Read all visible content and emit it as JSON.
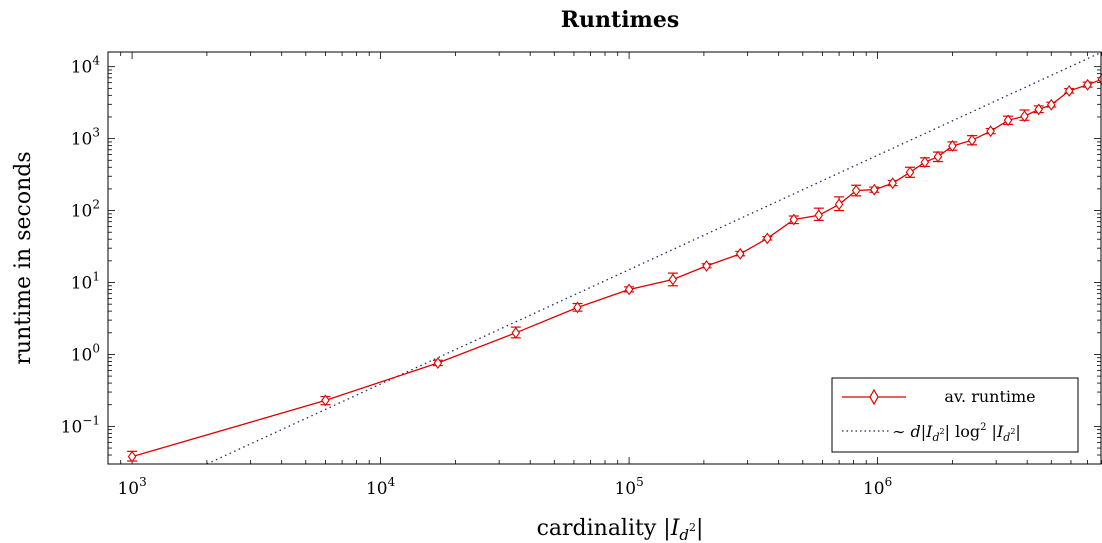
{
  "chart_data": {
    "type": "line",
    "title": "Runtimes",
    "xlabel": "cardinality |I_{d²}|",
    "ylabel": "runtime in seconds",
    "x_scale": "log",
    "y_scale": "log",
    "xlim": [
      800,
      8000000
    ],
    "ylim": [
      0.03,
      16000
    ],
    "x_ticks": [
      {
        "value": 1000,
        "base": "10",
        "exp": "3"
      },
      {
        "value": 10000,
        "base": "10",
        "exp": "4"
      },
      {
        "value": 100000,
        "base": "10",
        "exp": "5"
      },
      {
        "value": 1000000,
        "base": "10",
        "exp": "6"
      }
    ],
    "y_ticks": [
      {
        "value": 0.1,
        "base": "10",
        "exp": "−1"
      },
      {
        "value": 1,
        "base": "10",
        "exp": "0"
      },
      {
        "value": 10,
        "base": "10",
        "exp": "1"
      },
      {
        "value": 100,
        "base": "10",
        "exp": "2"
      },
      {
        "value": 1000,
        "base": "10",
        "exp": "3"
      },
      {
        "value": 10000,
        "base": "10",
        "exp": "4"
      }
    ],
    "legend_position": "bottom-right",
    "series": [
      {
        "name": "av. runtime",
        "color": "#e00000",
        "marker": "diamond",
        "points": [
          {
            "x": 1000,
            "y": 0.038,
            "ylo": 0.033,
            "yhi": 0.045
          },
          {
            "x": 6000,
            "y": 0.23,
            "ylo": 0.2,
            "yhi": 0.26
          },
          {
            "x": 17000,
            "y": 0.76,
            "ylo": 0.7,
            "yhi": 0.83
          },
          {
            "x": 35000,
            "y": 2.0,
            "ylo": 1.7,
            "yhi": 2.4
          },
          {
            "x": 62000,
            "y": 4.5,
            "ylo": 4.0,
            "yhi": 5.1
          },
          {
            "x": 100000,
            "y": 8.0,
            "ylo": 7.4,
            "yhi": 8.7
          },
          {
            "x": 150000,
            "y": 11.0,
            "ylo": 9.0,
            "yhi": 13.5
          },
          {
            "x": 205000,
            "y": 17.0,
            "ylo": 16.0,
            "yhi": 18.2
          },
          {
            "x": 280000,
            "y": 25.0,
            "ylo": 23.5,
            "yhi": 27.0
          },
          {
            "x": 360000,
            "y": 41.0,
            "ylo": 39.0,
            "yhi": 43.5
          },
          {
            "x": 460000,
            "y": 75.0,
            "ylo": 66.0,
            "yhi": 84.0
          },
          {
            "x": 580000,
            "y": 86.0,
            "ylo": 73.0,
            "yhi": 108.0
          },
          {
            "x": 700000,
            "y": 122.0,
            "ylo": 100.0,
            "yhi": 155.0
          },
          {
            "x": 820000,
            "y": 190.0,
            "ylo": 160.0,
            "yhi": 225.0
          },
          {
            "x": 970000,
            "y": 195.0,
            "ylo": 180.0,
            "yhi": 212.0
          },
          {
            "x": 1150000,
            "y": 240.0,
            "ylo": 222.0,
            "yhi": 262.0
          },
          {
            "x": 1350000,
            "y": 340.0,
            "ylo": 290.0,
            "yhi": 400.0
          },
          {
            "x": 1550000,
            "y": 470.0,
            "ylo": 410.0,
            "yhi": 540.0
          },
          {
            "x": 1750000,
            "y": 560.0,
            "ylo": 480.0,
            "yhi": 650.0
          },
          {
            "x": 2000000,
            "y": 790.0,
            "ylo": 690.0,
            "yhi": 900.0
          },
          {
            "x": 2400000,
            "y": 950.0,
            "ylo": 820.0,
            "yhi": 1100.0
          },
          {
            "x": 2850000,
            "y": 1270.0,
            "ylo": 1170.0,
            "yhi": 1380.0
          },
          {
            "x": 3350000,
            "y": 1800.0,
            "ylo": 1580.0,
            "yhi": 2050.0
          },
          {
            "x": 3900000,
            "y": 2050.0,
            "ylo": 1800.0,
            "yhi": 2500.0
          },
          {
            "x": 4450000,
            "y": 2550.0,
            "ylo": 2300.0,
            "yhi": 2850.0
          },
          {
            "x": 5000000,
            "y": 2950.0,
            "ylo": 2750.0,
            "yhi": 3200.0
          },
          {
            "x": 5900000,
            "y": 4600.0,
            "ylo": 4300.0,
            "yhi": 4950.0
          },
          {
            "x": 7000000,
            "y": 5600.0,
            "ylo": 5200.0,
            "yhi": 6100.0
          },
          {
            "x": 8000000,
            "y": 6700.0
          }
        ]
      },
      {
        "name": "∼ d|I_{d²}| log² |I_{d²}|",
        "color": "#1a2a6c",
        "style": "dotted",
        "points": [
          {
            "x": 2000,
            "y": 0.03
          },
          {
            "x": 8000000,
            "y": 16000
          }
        ]
      }
    ]
  },
  "legend": {
    "entry1": "av. runtime",
    "entry2": "∼ d|I_{d²}| log² |I_{d²}|"
  }
}
